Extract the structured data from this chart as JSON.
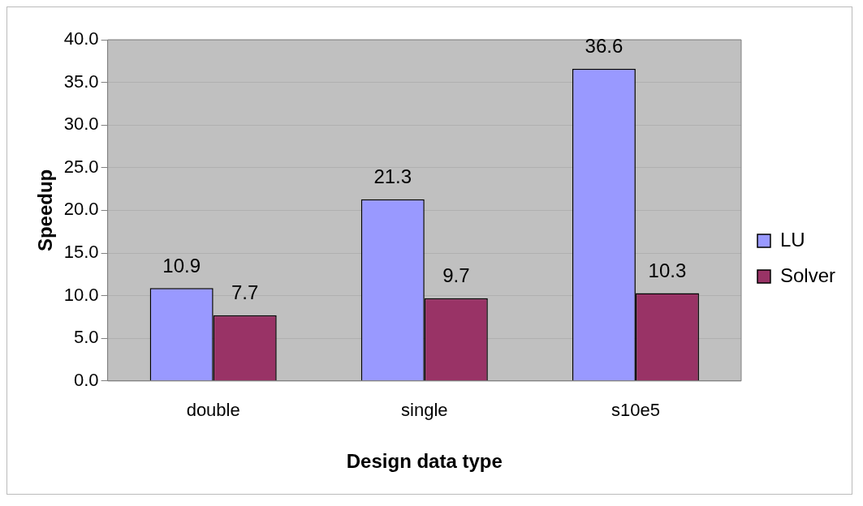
{
  "chart_data": {
    "type": "bar",
    "xlabel": "Design data type",
    "ylabel": "Speedup",
    "categories": [
      "double",
      "single",
      "s10e5"
    ],
    "series": [
      {
        "name": "LU",
        "color": "#9999ff",
        "values": [
          10.9,
          21.3,
          36.6
        ]
      },
      {
        "name": "Solver",
        "color": "#993366",
        "values": [
          7.7,
          9.7,
          10.3
        ]
      }
    ],
    "ylim": [
      0,
      40
    ],
    "yticks": [
      {
        "value": 0,
        "label": "0.0"
      },
      {
        "value": 5,
        "label": "5.0"
      },
      {
        "value": 10,
        "label": "10.0"
      },
      {
        "value": 15,
        "label": "15.0"
      },
      {
        "value": 20,
        "label": "20.0"
      },
      {
        "value": 25,
        "label": "25.0"
      },
      {
        "value": 30,
        "label": "30.0"
      },
      {
        "value": 35,
        "label": "35.0"
      },
      {
        "value": 40,
        "label": "40.0"
      }
    ],
    "grid": "y",
    "legend": "right",
    "data_labels": true
  }
}
